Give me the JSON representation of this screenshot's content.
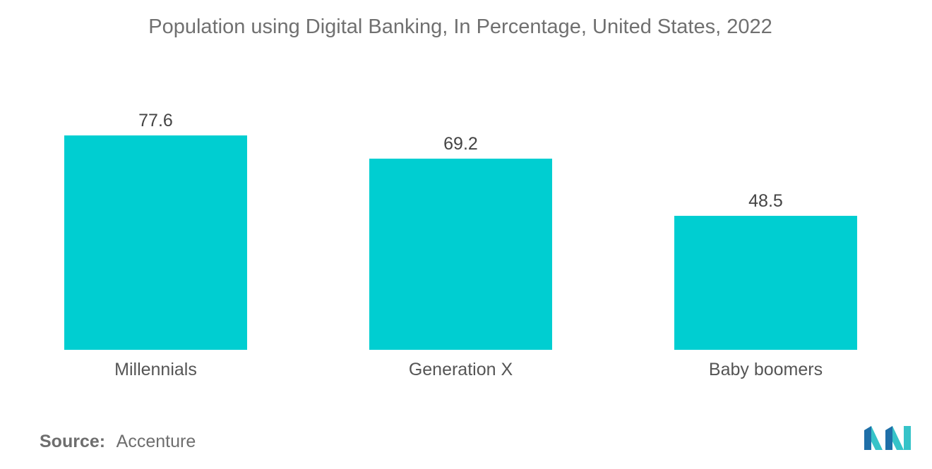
{
  "chart_data": {
    "type": "bar",
    "title": "Population using Digital Banking, In Percentage, United States, 2022",
    "categories": [
      "Millennials",
      "Generation X",
      "Baby boomers"
    ],
    "values": [
      77.6,
      69.2,
      48.5
    ],
    "value_labels": [
      "77.6",
      "69.2",
      "48.5"
    ],
    "xlabel": "",
    "ylabel": "",
    "ylim": [
      0,
      80
    ],
    "grid": false,
    "legend": "none",
    "bar_color": "#00CED1"
  },
  "source": {
    "label": "Source:",
    "value": "Accenture"
  },
  "logo": {
    "icon": "mordor-intelligence-logo",
    "color_dark": "#1F6FA8",
    "color_light": "#36C3C8"
  }
}
